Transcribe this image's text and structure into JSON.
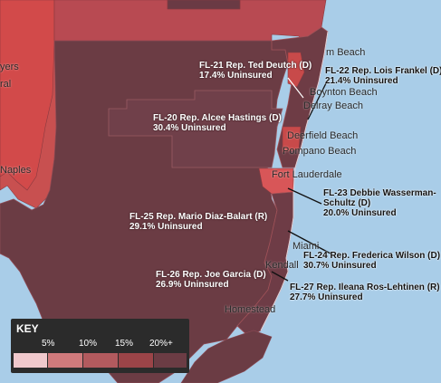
{
  "places": {
    "myers": "yers",
    "ral": "ral",
    "naples": "Naples",
    "palm_beach": "m Beach",
    "boynton": "Boynton Beach",
    "delray": "Delray Beach",
    "deerfield": "Deerfield Beach",
    "pompano": "Pompano Beach",
    "fort_lauderdale": "Fort Lauderdale",
    "miami": "Miami",
    "kendall": "Kendall",
    "homestead": "Homestead"
  },
  "districts": {
    "fl21": {
      "line1": "FL-21 Rep. Ted Deutch (D)",
      "line2": "17.4% Uninsured",
      "uninsured_pct": 17.4
    },
    "fl22": {
      "line1": "FL-22 Rep. Lois Frankel (D)",
      "line2": "21.4% Uninsured",
      "uninsured_pct": 21.4
    },
    "fl20": {
      "line1": "FL-20 Rep. Alcee Hastings (D)",
      "line2": "30.4% Uninsured",
      "uninsured_pct": 30.4
    },
    "fl23": {
      "line1": "FL-23 Debbie Wasserman-",
      "line2": "Schultz (D)",
      "line3": "20.0% Uninsured",
      "uninsured_pct": 20.0
    },
    "fl25": {
      "line1": "FL-25 Rep. Mario Diaz-Balart (R)",
      "line2": "29.1% Uninsured",
      "uninsured_pct": 29.1
    },
    "fl24": {
      "line1": "FL-24 Rep. Frederica Wilson (D)",
      "line2": "30.7% Uninsured",
      "uninsured_pct": 30.7
    },
    "fl26": {
      "line1": "FL-26 Rep. Joe Garcia (D)",
      "line2": "26.9% Uninsured",
      "uninsured_pct": 26.9
    },
    "fl27": {
      "line1": "FL-27 Rep. Ileana Ros-Lehtinen (R)",
      "line2": "27.7% Uninsured",
      "uninsured_pct": 27.7
    }
  },
  "key": {
    "title": "KEY",
    "ticks": [
      "5%",
      "10%",
      "15%",
      "20%+"
    ],
    "swatch_colors": [
      "#f0c8cc",
      "#d07a7c",
      "#b35a5e",
      "#9b4448",
      "#6b3c44"
    ]
  },
  "colors": {
    "water": "#a9cde8",
    "land_high": "#6b3c44",
    "land_mid": "#c0454a",
    "land_light": "#e05a5a"
  }
}
